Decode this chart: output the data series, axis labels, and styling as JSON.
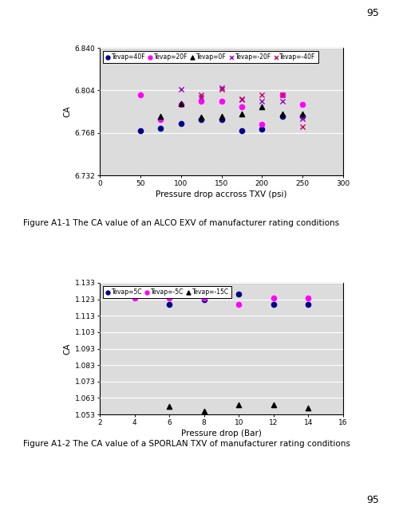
{
  "chart1": {
    "xlabel": "Pressure drop accross TXV (psi)",
    "ylabel": "CA",
    "xlim": [
      0,
      300
    ],
    "ylim": [
      6.732,
      6.84
    ],
    "yticks": [
      6.732,
      6.768,
      6.804,
      6.84
    ],
    "xticks": [
      0,
      50,
      100,
      150,
      200,
      250,
      300
    ],
    "series": [
      {
        "label": "Tevap=40F",
        "color": "#00008B",
        "marker": "o",
        "x": [
          50,
          75,
          100,
          125,
          150,
          175,
          200,
          225,
          250
        ],
        "y": [
          6.77,
          6.772,
          6.776,
          6.779,
          6.779,
          6.77,
          6.771,
          6.782,
          6.782
        ]
      },
      {
        "label": "Tevap=20F",
        "color": "#FF00FF",
        "marker": "o",
        "x": [
          50,
          75,
          100,
          125,
          150,
          175,
          200,
          225,
          250
        ],
        "y": [
          6.8,
          6.779,
          6.792,
          6.795,
          6.795,
          6.79,
          6.775,
          6.8,
          6.792
        ]
      },
      {
        "label": "Tevap=0F",
        "color": "#000000",
        "marker": "^",
        "x": [
          75,
          100,
          125,
          150,
          175,
          200,
          225,
          250
        ],
        "y": [
          6.782,
          6.793,
          6.781,
          6.782,
          6.784,
          6.79,
          6.784,
          6.784
        ]
      },
      {
        "label": "Tevap=-20F",
        "color": "#9900CC",
        "marker": "x",
        "x": [
          100,
          125,
          150,
          175,
          200,
          225,
          250
        ],
        "y": [
          6.805,
          6.798,
          6.806,
          6.796,
          6.795,
          6.795,
          6.78
        ]
      },
      {
        "label": "Tevap=-40F",
        "color": "#CC0066",
        "marker": "x",
        "x": [
          125,
          150,
          175,
          200,
          225,
          250
        ],
        "y": [
          6.8,
          6.805,
          6.797,
          6.8,
          6.8,
          6.773
        ]
      }
    ],
    "caption": "Figure A1-1 The CA value of an ALCO EXV of manufacturer rating conditions",
    "legend_ncol": 5
  },
  "chart2": {
    "xlabel": "Pressure drop (Bar)",
    "ylabel": "CA",
    "xlim": [
      2,
      16
    ],
    "ylim": [
      1.053,
      1.133
    ],
    "yticks": [
      1.053,
      1.063,
      1.073,
      1.083,
      1.093,
      1.103,
      1.113,
      1.123,
      1.133
    ],
    "xticks": [
      2,
      4,
      6,
      8,
      10,
      12,
      14,
      16
    ],
    "series": [
      {
        "label": "Tevap=5C",
        "color": "#00008B",
        "marker": "o",
        "x": [
          4,
          6,
          8,
          10,
          12,
          14
        ],
        "y": [
          1.127,
          1.12,
          1.123,
          1.126,
          1.12,
          1.12
        ]
      },
      {
        "label": "Tevap=-5C",
        "color": "#FF00FF",
        "marker": "o",
        "x": [
          4,
          6,
          8,
          10,
          12,
          14
        ],
        "y": [
          1.124,
          1.124,
          1.124,
          1.12,
          1.124,
          1.124
        ]
      },
      {
        "label": "Tevap=-15C",
        "color": "#000000",
        "marker": "^",
        "x": [
          6,
          8,
          10,
          12,
          14
        ],
        "y": [
          1.058,
          1.055,
          1.059,
          1.059,
          1.057
        ]
      }
    ],
    "caption": "Figure A1-2 The CA value of a SPORLAN TXV of manufacturer rating conditions",
    "legend_ncol": 3
  },
  "page_number": "95",
  "background_color": "#DCDCDC",
  "page_bg": "#FFFFFF"
}
